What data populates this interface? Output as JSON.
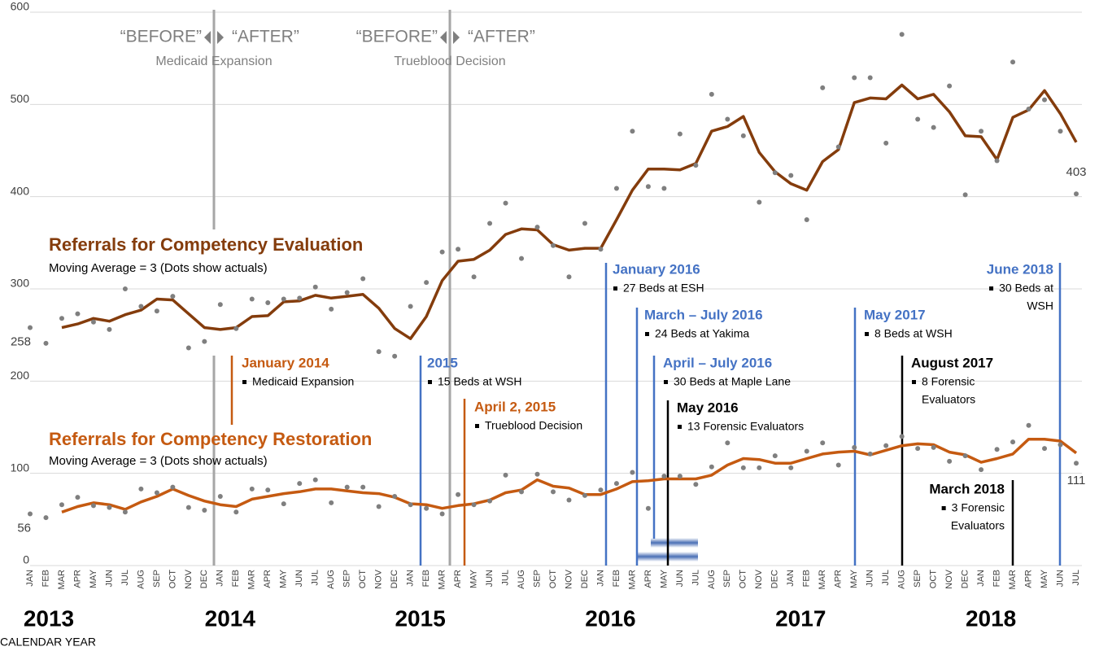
{
  "chart_data": {
    "type": "line",
    "categories": [
      "JAN",
      "FEB",
      "MAR",
      "APR",
      "MAY",
      "JUN",
      "JUL",
      "AUG",
      "SEP",
      "OCT",
      "NOV",
      "DEC",
      "JAN",
      "FEB",
      "MAR",
      "APR",
      "MAY",
      "JUN",
      "JUL",
      "AUG",
      "SEP",
      "OCT",
      "NOV",
      "DEC",
      "JAN",
      "FEB",
      "MAR",
      "APR",
      "MAY",
      "JUN",
      "JUL",
      "AUG",
      "SEP",
      "OCT",
      "NOV",
      "DEC",
      "JAN",
      "FEB",
      "MAR",
      "APR",
      "MAY",
      "JUN",
      "JUL",
      "AUG",
      "SEP",
      "OCT",
      "NOV",
      "DEC",
      "JAN",
      "FEB",
      "MAR",
      "APR",
      "MAY",
      "JUN",
      "JUL",
      "AUG",
      "SEP",
      "OCT",
      "NOV",
      "DEC",
      "JAN",
      "FEB",
      "MAR",
      "APR",
      "MAY",
      "JUN",
      "JUL"
    ],
    "years": [
      "2013",
      "2014",
      "2015",
      "2016",
      "2017",
      "2018"
    ],
    "x_label": "CALENDAR YEAR",
    "ylim": [
      0,
      600
    ],
    "yticks": [
      0,
      100,
      200,
      300,
      400,
      500,
      600
    ],
    "grid": true,
    "dot_color": "#7f7f7f",
    "series": [
      {
        "name": "Referrals for Competency Evaluation",
        "subtitle": "Moving Average = 3 (Dots show actuals)",
        "color": "#843c0c",
        "values": [
          258,
          241,
          268,
          273,
          264,
          256,
          300,
          281,
          276,
          292,
          236,
          243,
          283,
          257,
          289,
          285,
          289,
          290,
          302,
          278,
          296,
          311,
          232,
          227,
          281,
          307,
          340,
          343,
          313,
          371,
          393,
          333,
          367,
          347,
          313,
          371,
          343,
          409,
          471,
          411,
          409,
          468,
          434,
          511,
          484,
          466,
          394,
          426,
          423,
          375,
          518,
          454,
          529,
          529,
          458,
          576,
          484,
          475,
          520,
          402,
          471,
          439,
          546,
          495,
          505,
          471,
          403
        ],
        "moving_average": [
          null,
          null,
          258,
          262,
          268,
          265,
          272,
          277,
          289,
          288,
          273,
          258,
          256,
          258,
          270,
          271,
          286,
          287,
          293,
          290,
          292,
          294,
          279,
          257,
          246,
          270,
          309,
          330,
          332,
          342,
          359,
          365,
          364,
          348,
          342,
          344,
          344,
          375,
          407,
          430,
          430,
          429,
          436,
          471,
          476,
          487,
          448,
          427,
          414,
          407,
          438,
          451,
          502,
          507,
          506,
          521,
          506,
          511,
          492,
          466,
          465,
          440,
          486,
          494,
          515,
          490,
          459
        ]
      },
      {
        "name": "Referrals for Competency Restoration",
        "subtitle": "Moving Average = 3 (Dots show actuals)",
        "color": "#c55a11",
        "values": [
          56,
          52,
          66,
          74,
          65,
          63,
          58,
          83,
          79,
          85,
          63,
          60,
          75,
          58,
          83,
          82,
          67,
          89,
          93,
          68,
          85,
          85,
          64,
          75,
          66,
          62,
          56,
          77,
          66,
          70,
          98,
          80,
          99,
          80,
          71,
          76,
          82,
          89,
          101,
          62,
          97,
          97,
          88,
          107,
          133,
          106,
          106,
          119,
          106,
          124,
          133,
          109,
          128,
          121,
          130,
          140,
          127,
          128,
          113,
          119,
          104,
          126,
          134,
          152,
          127,
          131,
          111
        ],
        "moving_average": [
          null,
          null,
          58,
          64,
          68,
          66,
          61,
          69,
          75,
          83,
          76,
          70,
          66,
          64,
          72,
          75,
          78,
          80,
          83,
          83,
          81,
          79,
          78,
          74,
          67,
          66,
          62,
          65,
          67,
          71,
          79,
          82,
          93,
          86,
          84,
          77,
          77,
          83,
          91,
          92,
          94,
          94,
          94,
          98,
          109,
          116,
          115,
          111,
          111,
          116,
          121,
          123,
          124,
          120,
          125,
          130,
          132,
          131,
          123,
          120,
          112,
          116,
          121,
          137,
          137,
          135,
          122
        ]
      }
    ],
    "policy_markers": [
      {
        "before": "“BEFORE”",
        "after": "“AFTER”",
        "label": "Medicaid Expansion"
      },
      {
        "before": "“BEFORE”",
        "after": "“AFTER”",
        "label": "Trueblood Decision"
      }
    ],
    "events": [
      {
        "title": "January 2014",
        "color": "#c55a11",
        "body": [
          "Medicaid Expansion"
        ]
      },
      {
        "title": "2015",
        "color": "#4472c4",
        "body": [
          "15 Beds at WSH"
        ]
      },
      {
        "title": "April 2, 2015",
        "color": "#c55a11",
        "body": [
          "Trueblood Decision"
        ]
      },
      {
        "title": "January 2016",
        "color": "#4472c4",
        "body": [
          "27 Beds at ESH"
        ]
      },
      {
        "title": "March – July 2016",
        "color": "#4472c4",
        "body": [
          "24 Beds at Yakima"
        ]
      },
      {
        "title": "April – July 2016",
        "color": "#4472c4",
        "body": [
          "30 Beds at Maple Lane"
        ]
      },
      {
        "title": "May 2016",
        "color": "#000000",
        "body": [
          "13 Forensic Evaluators"
        ]
      },
      {
        "title": "May 2017",
        "color": "#4472c4",
        "body": [
          "8 Beds at WSH"
        ]
      },
      {
        "title": "August 2017",
        "color": "#000000",
        "body": [
          "8 Forensic",
          "Evaluators"
        ]
      },
      {
        "title": "March 2018",
        "color": "#000000",
        "body": [
          "3 Forensic",
          "Evaluators"
        ]
      },
      {
        "title": "June 2018",
        "color": "#4472c4",
        "body": [
          "30 Beds at",
          "WSH"
        ]
      }
    ]
  }
}
